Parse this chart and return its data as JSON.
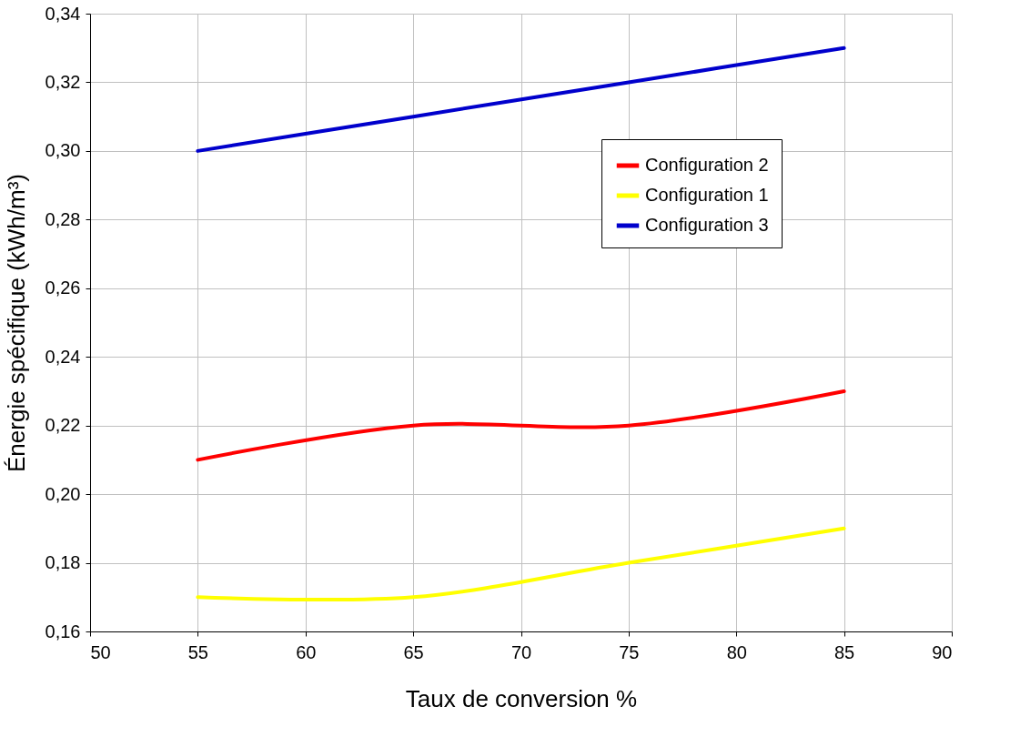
{
  "chart_data": {
    "type": "line",
    "xlabel": "Taux de conversion %",
    "ylabel": "Énergie spécifique (kWh/m³)",
    "x": [
      55,
      65,
      75,
      85
    ],
    "series": [
      {
        "name": "Configuration 2",
        "color": "#ff0000",
        "values": [
          0.21,
          0.22,
          0.22,
          0.23
        ]
      },
      {
        "name": "Configuration 1",
        "color": "#ffff00",
        "values": [
          0.17,
          0.17,
          0.18,
          0.19
        ]
      },
      {
        "name": "Configuration 3",
        "color": "#0000cc",
        "values": [
          0.3,
          0.31,
          0.32,
          0.33
        ]
      }
    ],
    "xlim": [
      50,
      90
    ],
    "xticks": [
      50,
      55,
      60,
      65,
      70,
      75,
      80,
      85,
      90
    ],
    "ylim": [
      0.16,
      0.34
    ],
    "yticks": [
      {
        "value": 0.16,
        "label": "0,16"
      },
      {
        "value": 0.18,
        "label": "0,18"
      },
      {
        "value": 0.2,
        "label": "0,20"
      },
      {
        "value": 0.22,
        "label": "0,22"
      },
      {
        "value": 0.24,
        "label": "0,24"
      },
      {
        "value": 0.26,
        "label": "0,26"
      },
      {
        "value": 0.28,
        "label": "0,28"
      },
      {
        "value": 0.3,
        "label": "0,30"
      },
      {
        "value": 0.32,
        "label": "0,32"
      },
      {
        "value": 0.34,
        "label": "0,34"
      }
    ],
    "grid": true,
    "legend": "top right",
    "marker": "none",
    "line_style": "solid"
  }
}
